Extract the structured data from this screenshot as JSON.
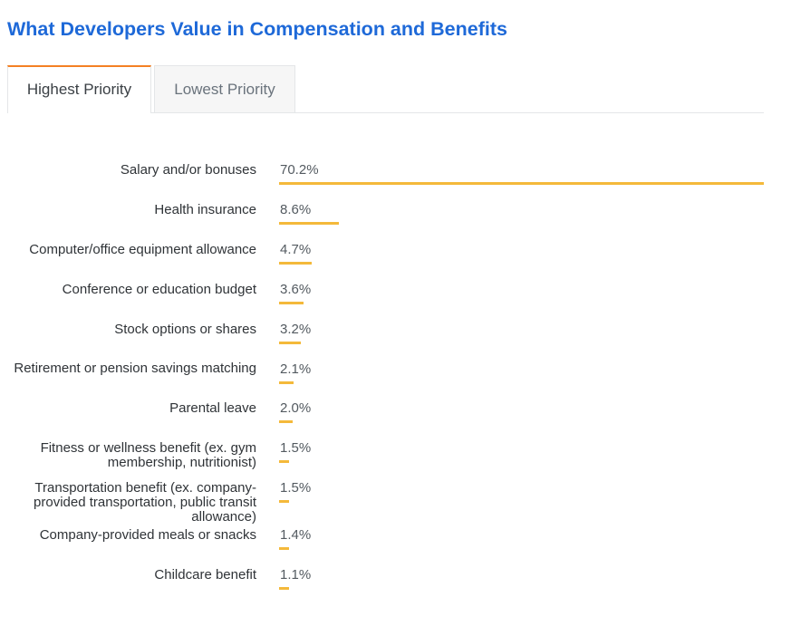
{
  "title": "What Developers Value in Compensation and Benefits",
  "tabs": [
    {
      "label": "Highest Priority",
      "active": true
    },
    {
      "label": "Lowest Priority",
      "active": false
    }
  ],
  "colors": {
    "title": "#1e69d8",
    "bar": "#f4b93a",
    "active_tab_accent": "#f48024"
  },
  "chart_data": {
    "type": "bar",
    "orientation": "horizontal",
    "categories": [
      "Salary and/or bonuses",
      "Health insurance",
      "Computer/office equipment allowance",
      "Conference or education budget",
      "Stock options or shares",
      "Retirement or pension savings matching",
      "Parental leave",
      "Fitness or wellness benefit (ex. gym membership, nutritionist)",
      "Transportation benefit (ex. company-provided transportation, public transit allowance)",
      "Company-provided meals or snacks",
      "Childcare benefit"
    ],
    "values": [
      70.2,
      8.6,
      4.7,
      3.6,
      3.2,
      2.1,
      2.0,
      1.5,
      1.5,
      1.4,
      1.1
    ],
    "value_labels": [
      "70.2%",
      "8.6%",
      "4.7%",
      "3.6%",
      "3.2%",
      "2.1%",
      "2.0%",
      "1.5%",
      "1.5%",
      "1.4%",
      "1.1%"
    ],
    "xlim": [
      0,
      70.2
    ],
    "grid": false,
    "legend": "none"
  }
}
